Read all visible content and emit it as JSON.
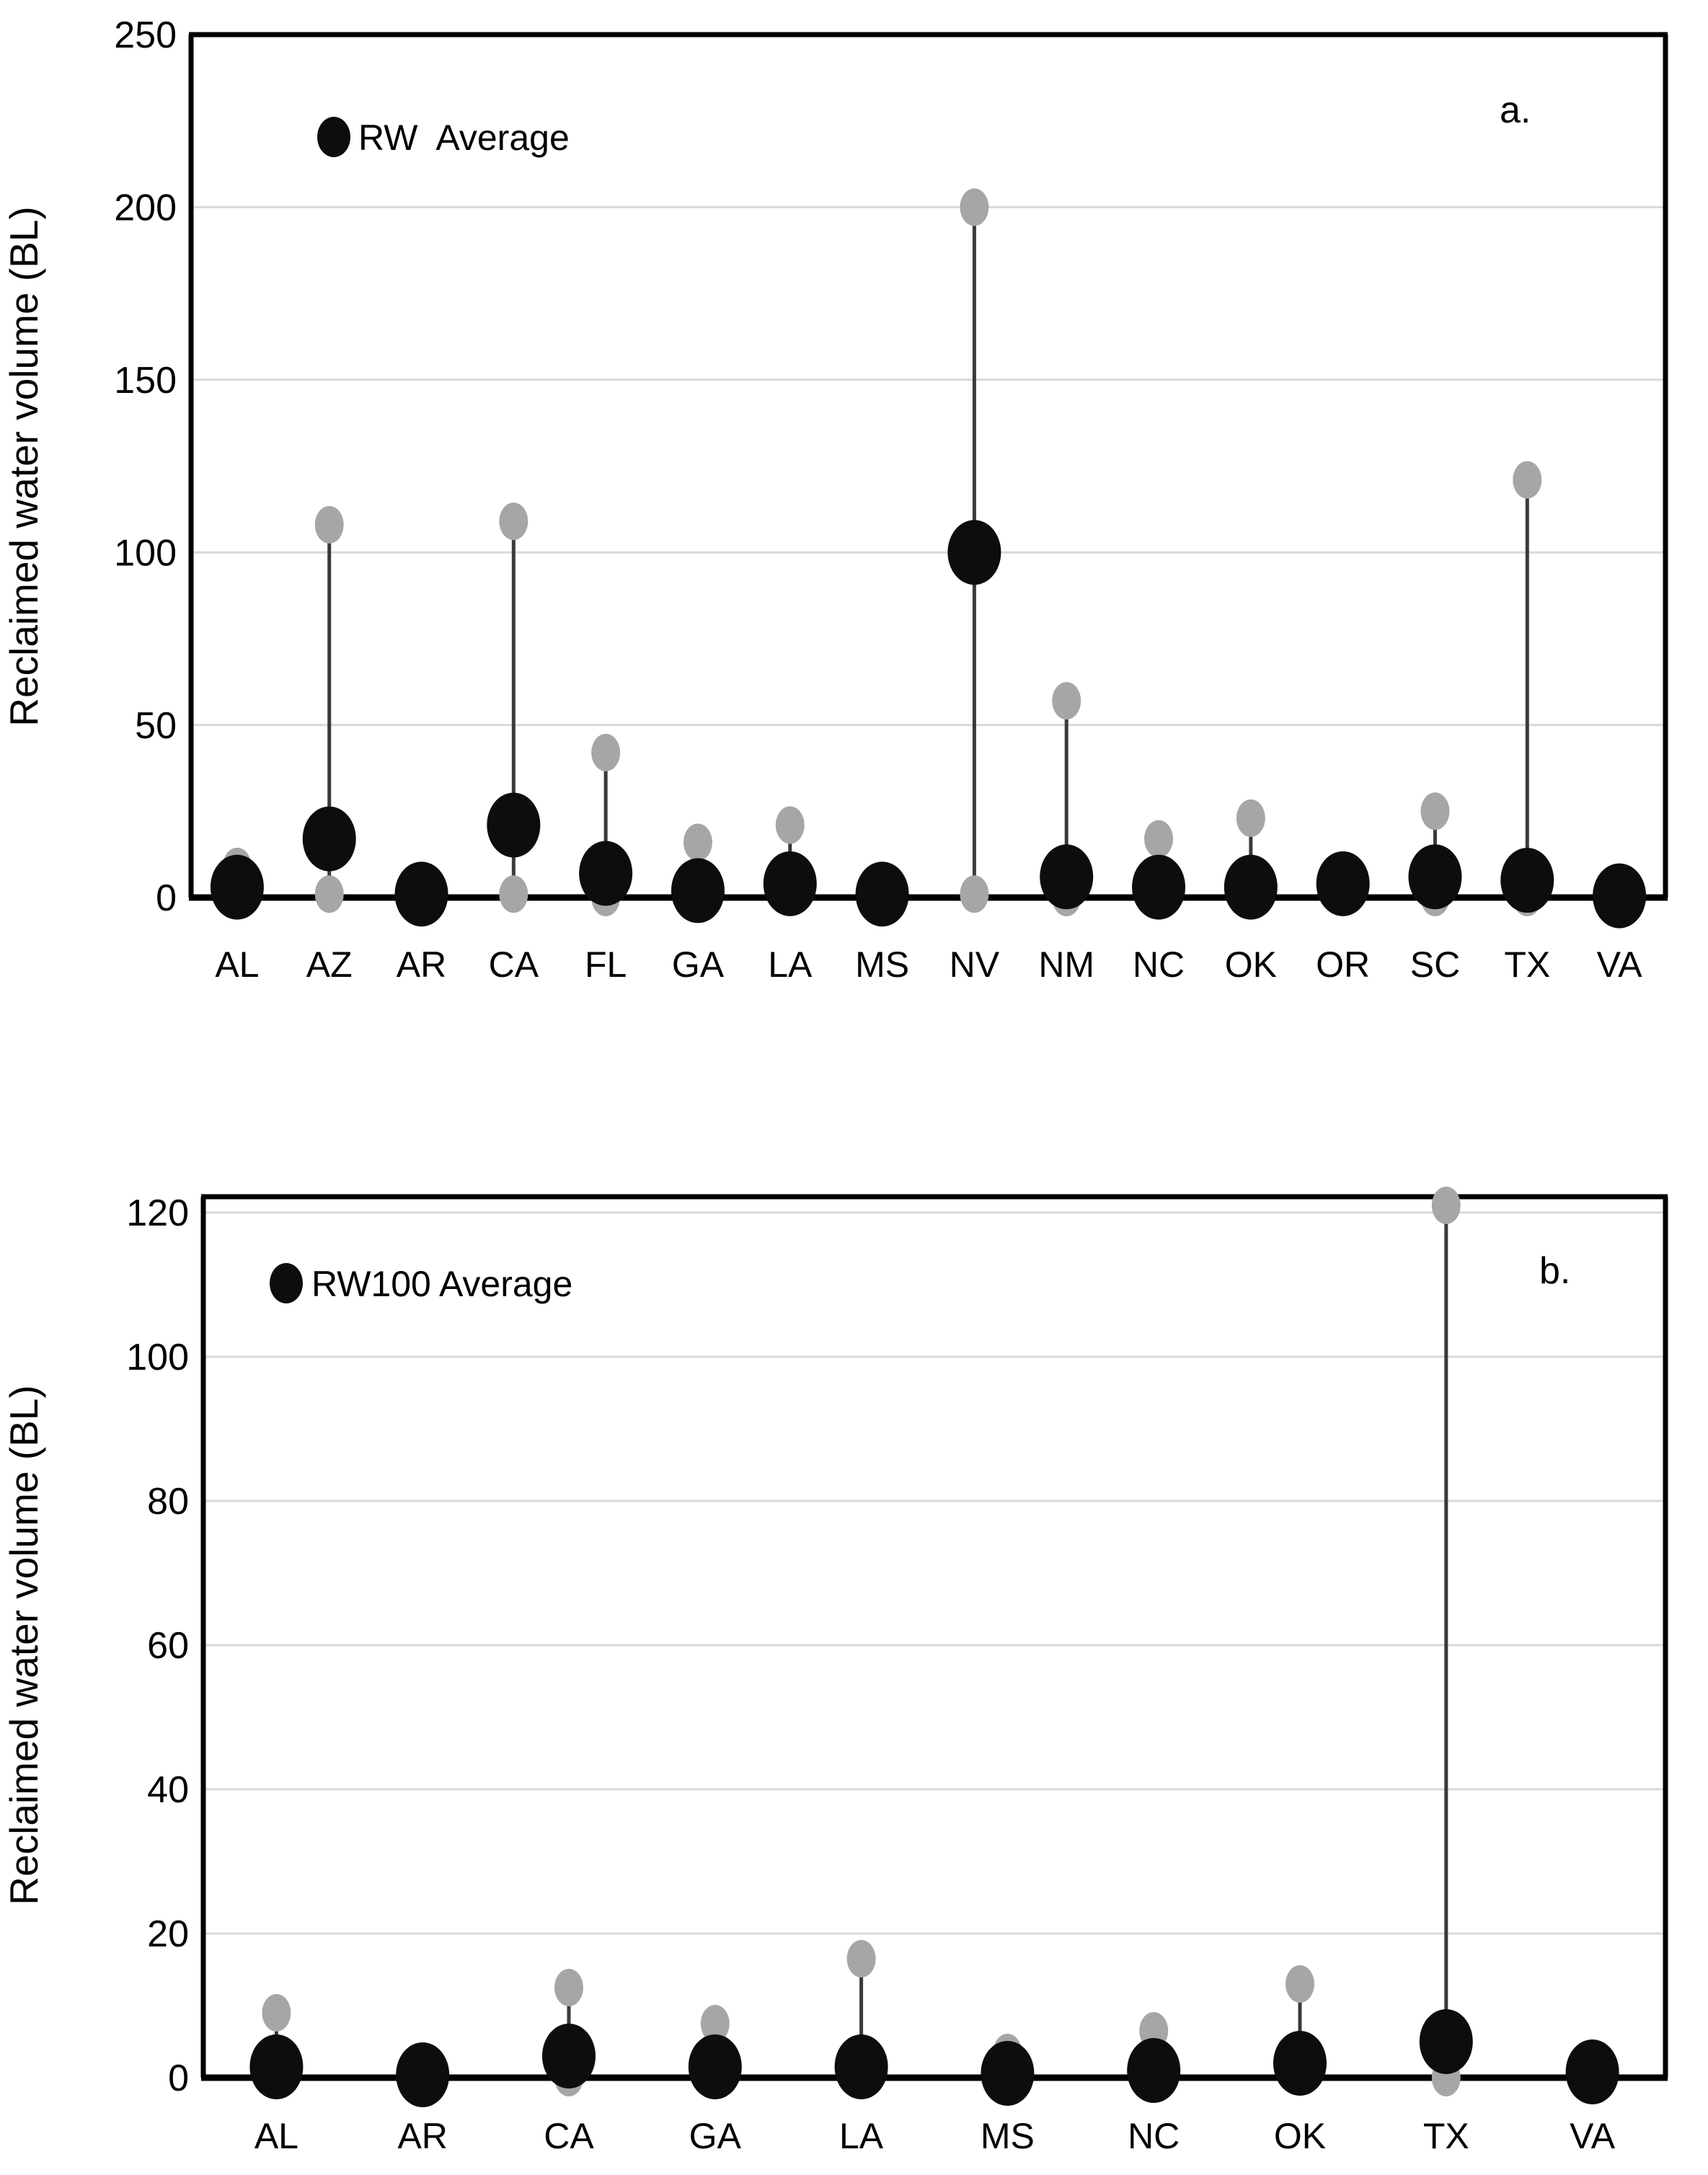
{
  "figure": {
    "background": "#ffffff",
    "panels": [
      "a.",
      "b."
    ]
  },
  "colors": {
    "average_dot": "#0d0d0d",
    "range_dot": "#a6a6a6",
    "whisker_line": "#3a3a3a",
    "gridline": "#d9d9d9",
    "frame": "#000000",
    "text": "#000000"
  },
  "chart_data": [
    {
      "type": "scatter",
      "panel_label": "a.",
      "legend": "RW  Average",
      "ylabel": "Reclaimed water volume (BL)",
      "xlabel": "",
      "ylim": [
        0,
        250
      ],
      "yticks": [
        0,
        50,
        100,
        150,
        200,
        250
      ],
      "grid": "horizontal",
      "legend_position": "top-left-inside",
      "categories": [
        "AL",
        "AZ",
        "AR",
        "CA",
        "FL",
        "GA",
        "LA",
        "MS",
        "NV",
        "NM",
        "NC",
        "OK",
        "OR",
        "SC",
        "TX",
        "VA"
      ],
      "series": [
        {
          "name": "RW Average",
          "role": "average",
          "values": [
            3,
            17,
            1,
            21,
            7,
            2,
            4,
            1,
            100,
            6,
            3,
            3,
            4,
            6,
            5,
            0.5
          ]
        },
        {
          "name": "Maximum",
          "role": "max",
          "values": [
            9,
            108,
            null,
            109,
            42,
            16,
            21,
            null,
            200,
            57,
            17,
            23,
            null,
            25,
            121,
            null
          ]
        },
        {
          "name": "Minimum",
          "role": "min",
          "values": [
            null,
            1,
            null,
            1,
            0,
            null,
            null,
            null,
            1,
            0,
            null,
            null,
            null,
            0,
            0,
            null
          ]
        }
      ]
    },
    {
      "type": "scatter",
      "panel_label": "b.",
      "legend": "RW100 Average",
      "ylabel": "Reclaimed water volume (BL)",
      "xlabel": "",
      "ylim": [
        0,
        120
      ],
      "yticks": [
        0,
        20,
        40,
        60,
        80,
        100,
        120
      ],
      "grid": "horizontal",
      "legend_position": "top-left-inside",
      "categories": [
        "AL",
        "AR",
        "CA",
        "GA",
        "LA",
        "MS",
        "NC",
        "OK",
        "TX",
        "VA"
      ],
      "series": [
        {
          "name": "RW100 Average",
          "role": "average",
          "values": [
            1.5,
            0.4,
            3,
            1.5,
            1.5,
            0.6,
            1,
            2,
            5,
            0.8
          ]
        },
        {
          "name": "Maximum",
          "role": "max",
          "values": [
            9,
            null,
            12.5,
            7.5,
            16.5,
            3.5,
            6.5,
            13,
            121,
            null
          ]
        },
        {
          "name": "Minimum",
          "role": "min",
          "values": [
            null,
            null,
            0,
            null,
            null,
            null,
            null,
            null,
            0,
            null
          ]
        }
      ]
    }
  ]
}
